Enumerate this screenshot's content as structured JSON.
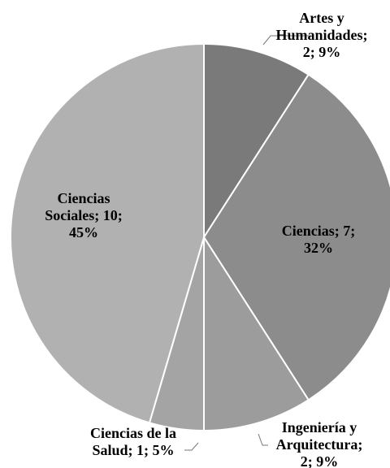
{
  "chart_data": {
    "type": "pie",
    "categories": [
      "Artes y Humanidades",
      "Ciencias",
      "Ingeniería y Arquitectura",
      "Ciencias de la Salud",
      "Ciencias Sociales"
    ],
    "values": [
      2,
      7,
      2,
      1,
      10
    ],
    "percentages": [
      9,
      32,
      9,
      5,
      45
    ],
    "colors": [
      "#7a7a7a",
      "#8c8c8c",
      "#9c9c9c",
      "#a4a4a4",
      "#b1b1b1"
    ],
    "data_labels": [
      [
        "Artes y",
        "Humanidades;",
        "2; 9%"
      ],
      [
        "Ciencias; 7;",
        "32%"
      ],
      [
        "Ingeniería y",
        "Arquitectura;",
        "2; 9%"
      ],
      [
        "Ciencias de la",
        "Salud; 1; 5%"
      ],
      [
        "Ciencias",
        "Sociales; 10;",
        "45%"
      ]
    ],
    "start_angle_deg": 0,
    "direction": "clockwise",
    "legend": "none"
  }
}
